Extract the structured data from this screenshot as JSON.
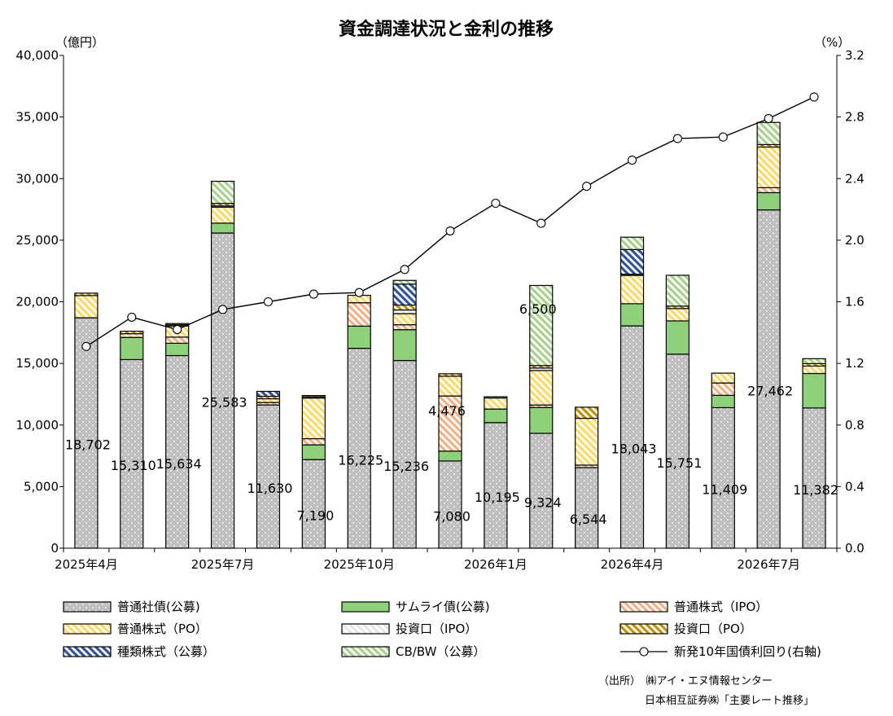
{
  "chart_data": {
    "type": "bar",
    "title": "資金調達状況と金利の推移",
    "left_axis_unit": "（億円）",
    "right_axis_unit": "（%）",
    "ylim": [
      0,
      40000
    ],
    "y2lim": [
      0.0,
      3.2
    ],
    "yticks": [
      "0",
      "5,000",
      "10,000",
      "15,000",
      "20,000",
      "25,000",
      "30,000",
      "35,000",
      "40,000"
    ],
    "y2ticks": [
      "0.0",
      "0.4",
      "0.8",
      "1.2",
      "1.6",
      "2.0",
      "2.4",
      "2.8",
      "3.2"
    ],
    "xtick_labels": [
      {
        "index": 0,
        "label": "2025年4月"
      },
      {
        "index": 3,
        "label": "2025年7月"
      },
      {
        "index": 6,
        "label": "2025年10月"
      },
      {
        "index": 9,
        "label": "2026年1月"
      },
      {
        "index": 12,
        "label": "2026年4月"
      },
      {
        "index": 15,
        "label": "2026年7月"
      }
    ],
    "categories": [
      "2025-04",
      "2025-05",
      "2025-06",
      "2025-07",
      "2025-08",
      "2025-09",
      "2025-10",
      "2025-11",
      "2025-12",
      "2026-01",
      "2026-02",
      "2026-03",
      "2026-04",
      "2026-05",
      "2026-06",
      "2026-07",
      "2026-08"
    ],
    "series": [
      {
        "name": "普通社債(公募)",
        "color": "#bfbfbf",
        "pattern": "dots",
        "values": [
          18702,
          15310,
          15634,
          25583,
          11630,
          7190,
          16225,
          15236,
          7080,
          10195,
          9324,
          6544,
          18043,
          15751,
          11409,
          27462,
          11382
        ]
      },
      {
        "name": "サムライ債(公募)",
        "color": "#8fd17b",
        "pattern": "solid",
        "values": [
          0,
          1800,
          1000,
          800,
          0,
          1200,
          1800,
          2500,
          800,
          1100,
          2100,
          0,
          1800,
          2700,
          1000,
          1400,
          2800
        ]
      },
      {
        "name": "普通株式（IPO）",
        "color": "#f4b084",
        "pattern": "diag",
        "values": [
          0,
          0,
          500,
          0,
          200,
          500,
          1900,
          400,
          4476,
          0,
          200,
          200,
          0,
          0,
          1000,
          400,
          0
        ]
      },
      {
        "name": "普通株式（PO）",
        "color": "#ffd966",
        "pattern": "diag",
        "values": [
          1800,
          300,
          900,
          1300,
          300,
          3300,
          600,
          900,
          1600,
          900,
          2800,
          3800,
          2300,
          1000,
          800,
          3300,
          600
        ]
      },
      {
        "name": "投資口（IPO）",
        "color": "#e6e6e6",
        "pattern": "diag",
        "values": [
          0,
          0,
          0,
          100,
          0,
          0,
          0,
          300,
          0,
          0,
          200,
          0,
          0,
          0,
          0,
          0,
          0
        ]
      },
      {
        "name": "投資口（PO）",
        "color": "#bf9000",
        "pattern": "diag",
        "values": [
          200,
          200,
          100,
          200,
          200,
          100,
          0,
          400,
          200,
          0,
          200,
          900,
          100,
          200,
          0,
          200,
          200
        ]
      },
      {
        "name": "種類株式（公募）",
        "color": "#2f5597",
        "pattern": "diag",
        "values": [
          0,
          0,
          0,
          0,
          400,
          0,
          0,
          1700,
          0,
          0,
          0,
          0,
          2000,
          0,
          0,
          0,
          0
        ]
      },
      {
        "name": "CB/BW（公募）",
        "color": "#a9d18e",
        "pattern": "diag",
        "values": [
          0,
          0,
          100,
          1800,
          0,
          100,
          0,
          300,
          0,
          100,
          6500,
          0,
          1000,
          2500,
          0,
          1800,
          400
        ]
      }
    ],
    "data_labels": [
      "18,702",
      "15,310",
      "15,634",
      "25,583",
      "11,630",
      "7,190",
      "16,225",
      "15,236",
      "7,080",
      "10,195",
      "9,324",
      "6,544",
      "18,043",
      "15,751",
      "11,409",
      "27,462",
      "11,382"
    ],
    "extra_labels": [
      {
        "index": 8,
        "series": 2,
        "text": "4,476"
      },
      {
        "index": 10,
        "series": 7,
        "text": "6,500"
      }
    ],
    "line_series": {
      "name": "新発10年国債利回り(右軸)",
      "color": "#000000",
      "values": [
        1.31,
        1.5,
        1.42,
        1.55,
        1.6,
        1.65,
        1.66,
        1.81,
        2.06,
        2.24,
        2.11,
        2.35,
        2.52,
        2.66,
        2.67,
        2.79,
        2.93
      ]
    },
    "legend_position": "bottom",
    "grid": false
  },
  "source": {
    "line1": "（出所）　㈱アイ・エヌ情報センター",
    "line2": "日本相互証券㈱「主要レート推移」"
  }
}
